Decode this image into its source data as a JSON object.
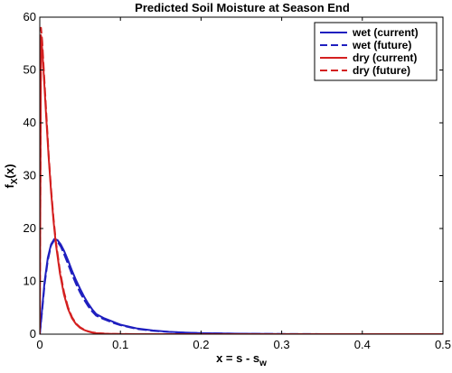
{
  "chart_data": {
    "type": "line",
    "title": "Predicted Soil Moisture at Season End",
    "xlabel": {
      "main": "x = s - s",
      "sub": "w"
    },
    "ylabel": {
      "main": "f",
      "sub": "X",
      "tail": "(x)"
    },
    "xlim": [
      0,
      0.5
    ],
    "ylim": [
      0,
      60
    ],
    "xticks": [
      0,
      0.1,
      0.2,
      0.3,
      0.4,
      0.5
    ],
    "xtick_labels": [
      "0",
      "0.1",
      "0.2",
      "0.3",
      "0.4",
      "0.5"
    ],
    "yticks": [
      0,
      10,
      20,
      30,
      40,
      50,
      60
    ],
    "ytick_labels": [
      "0",
      "10",
      "20",
      "30",
      "40",
      "50",
      "60"
    ],
    "grid": false,
    "legend_position": "top-right",
    "series": [
      {
        "name": "wet (current)",
        "color": "#1f1fbf",
        "dash": "solid",
        "x": [
          0,
          0.003,
          0.006,
          0.01,
          0.014,
          0.018,
          0.022,
          0.026,
          0.03,
          0.035,
          0.04,
          0.045,
          0.05,
          0.055,
          0.06,
          0.065,
          0.07,
          0.08,
          0.09,
          0.1,
          0.12,
          0.14,
          0.16,
          0.18,
          0.2,
          0.25,
          0.3,
          0.35,
          0.4,
          0.45,
          0.5
        ],
        "y": [
          0,
          5,
          10,
          14.5,
          17,
          18,
          17.8,
          17,
          15.8,
          14,
          12,
          10.2,
          8.6,
          7.1,
          5.8,
          4.7,
          3.8,
          3.0,
          2.4,
          1.8,
          1.1,
          0.7,
          0.45,
          0.3,
          0.2,
          0.08,
          0.03,
          0.01,
          0,
          0,
          0
        ]
      },
      {
        "name": "wet (future)",
        "color": "#1f1fbf",
        "dash": "dashed",
        "x": [
          0,
          0.003,
          0.006,
          0.01,
          0.014,
          0.018,
          0.022,
          0.026,
          0.03,
          0.035,
          0.04,
          0.045,
          0.05,
          0.055,
          0.06,
          0.065,
          0.07,
          0.08,
          0.09,
          0.1,
          0.12,
          0.14,
          0.16,
          0.18,
          0.2,
          0.25,
          0.3,
          0.35,
          0.4,
          0.45,
          0.5
        ],
        "y": [
          0,
          4.5,
          9.5,
          14,
          16.8,
          17.8,
          17.5,
          16.6,
          15.2,
          13.3,
          11.3,
          9.5,
          7.9,
          6.5,
          5.3,
          4.3,
          3.5,
          2.8,
          2.2,
          1.7,
          1.0,
          0.65,
          0.42,
          0.28,
          0.18,
          0.07,
          0.03,
          0.01,
          0,
          0,
          0
        ]
      },
      {
        "name": "dry (current)",
        "color": "#d42020",
        "dash": "solid",
        "x": [
          0,
          0.0015,
          0.003,
          0.005,
          0.008,
          0.011,
          0.014,
          0.017,
          0.02,
          0.025,
          0.03,
          0.035,
          0.04,
          0.045,
          0.05,
          0.055,
          0.06,
          0.065,
          0.07,
          0.08,
          0.09,
          0.1,
          0.12,
          0.15,
          0.2,
          0.3,
          0.5
        ],
        "y": [
          0,
          56,
          54,
          49,
          41,
          33.5,
          27,
          21.5,
          17,
          11.5,
          7.5,
          4.8,
          3.0,
          1.9,
          1.2,
          0.8,
          0.5,
          0.3,
          0.2,
          0.1,
          0.05,
          0.02,
          0,
          0,
          0,
          0,
          0
        ]
      },
      {
        "name": "dry (future)",
        "color": "#d42020",
        "dash": "dashed",
        "x": [
          0,
          0.0015,
          0.003,
          0.005,
          0.008,
          0.011,
          0.014,
          0.017,
          0.02,
          0.025,
          0.03,
          0.035,
          0.04,
          0.045,
          0.05,
          0.055,
          0.06,
          0.065,
          0.07,
          0.08,
          0.09,
          0.1,
          0.12,
          0.15,
          0.2,
          0.3,
          0.5
        ],
        "y": [
          0,
          58,
          55.5,
          50,
          42,
          34,
          27.5,
          22,
          17.5,
          12,
          8,
          5.1,
          3.2,
          2.0,
          1.3,
          0.85,
          0.55,
          0.35,
          0.22,
          0.1,
          0.05,
          0.02,
          0,
          0,
          0,
          0,
          0
        ]
      }
    ]
  }
}
